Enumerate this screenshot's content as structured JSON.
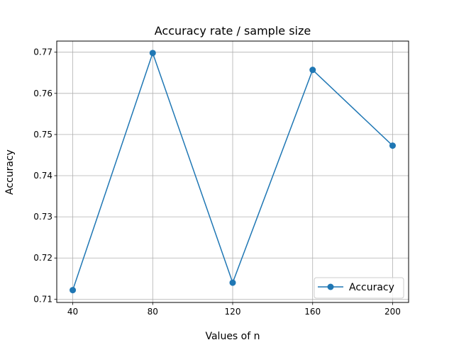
{
  "chart_data": {
    "type": "line",
    "title": "Accuracy rate / sample size",
    "xlabel": "Values of n",
    "ylabel": "Accuracy",
    "x": [
      40,
      80,
      120,
      160,
      200
    ],
    "xticks": [
      40,
      80,
      120,
      160,
      200
    ],
    "yticks": [
      0.71,
      0.72,
      0.73,
      0.74,
      0.75,
      0.76,
      0.77
    ],
    "xlim": [
      32,
      208
    ],
    "ylim": [
      0.7092,
      0.7727
    ],
    "grid": true,
    "legend_position": "lower-right",
    "series": [
      {
        "name": "Accuracy",
        "color": "#1f77b4",
        "marker": "circle",
        "values": [
          0.7122,
          0.7698,
          0.714,
          0.7657,
          0.7473
        ]
      }
    ]
  }
}
